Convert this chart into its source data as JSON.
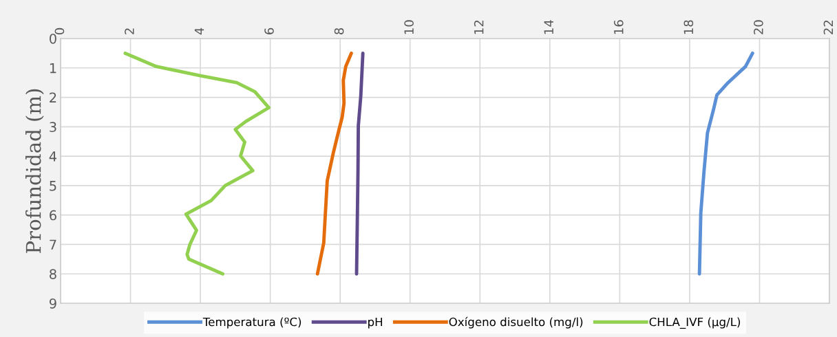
{
  "chart_data": {
    "type": "line",
    "ylabel": "Profundidad (m)",
    "xlim": [
      0,
      22
    ],
    "xticks": [
      0,
      2,
      4,
      6,
      8,
      10,
      12,
      14,
      16,
      18,
      20,
      22
    ],
    "ylim": [
      9,
      0
    ],
    "yticks": [
      0,
      1,
      2,
      3,
      4,
      5,
      6,
      7,
      8,
      9
    ],
    "grid": true,
    "legend": "bottom",
    "marker": "none",
    "line_style": "solid",
    "series": [
      {
        "name": "Temperatura (ºC)",
        "color": "#5b8fd6",
        "x": [
          19.8,
          19.6,
          19.1,
          18.78,
          18.68,
          18.51,
          18.41,
          18.32,
          18.28
        ],
        "values": [
          0.5,
          0.95,
          1.5,
          1.92,
          2.43,
          3.21,
          4.53,
          5.93,
          8.0
        ]
      },
      {
        "name": "pH",
        "color": "#5f4b8b",
        "x": [
          8.65,
          8.59,
          8.52,
          8.51,
          8.47
        ],
        "values": [
          0.5,
          1.96,
          2.97,
          4.53,
          8.0
        ]
      },
      {
        "name": "Oxígeno disuelto (mg/l)",
        "color": "#e46c0a",
        "x": [
          8.32,
          8.16,
          8.09,
          8.11,
          8.06,
          7.96,
          7.8,
          7.63,
          7.57,
          7.53,
          7.35
        ],
        "values": [
          0.5,
          0.95,
          1.42,
          2.2,
          2.66,
          3.13,
          3.91,
          4.84,
          6.09,
          6.95,
          8.0
        ]
      },
      {
        "name": "CHLA_IVF (µg/L)",
        "color": "#92d050",
        "x": [
          1.85,
          2.74,
          3.98,
          5.04,
          5.56,
          5.96,
          5.3,
          5.0,
          5.27,
          5.15,
          5.5,
          4.71,
          4.31,
          3.59,
          3.89,
          3.7,
          3.62,
          3.67,
          4.64
        ],
        "values": [
          0.5,
          0.95,
          1.26,
          1.5,
          1.81,
          2.35,
          2.82,
          3.09,
          3.52,
          3.99,
          4.49,
          5.0,
          5.51,
          5.97,
          6.52,
          7.0,
          7.34,
          7.5,
          8.0
        ]
      }
    ]
  }
}
